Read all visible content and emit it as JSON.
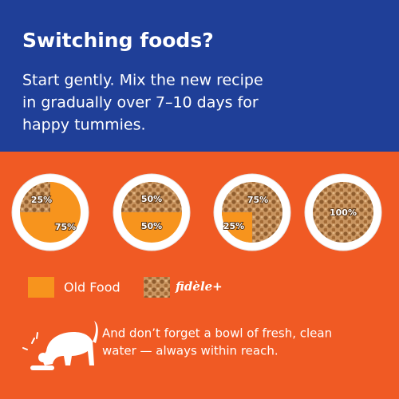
{
  "header": {
    "title": "Switching foods?",
    "body_lines": [
      "Start gently. Mix the new recipe",
      "in gradually over 7–10 days for",
      "happy tummies."
    ]
  },
  "bowls": [
    {
      "new_label": "25%",
      "old_label": "75%"
    },
    {
      "new_label": "50%",
      "old_label": "50%"
    },
    {
      "new_label": "75%",
      "old_label": "25%"
    },
    {
      "new_label": "100%"
    }
  ],
  "legend": {
    "old_food": "Old Food",
    "brand": "fidèle+"
  },
  "note": {
    "lines": [
      "And don’t forget a bowl of fresh, clean",
      "water — always within reach."
    ]
  }
}
